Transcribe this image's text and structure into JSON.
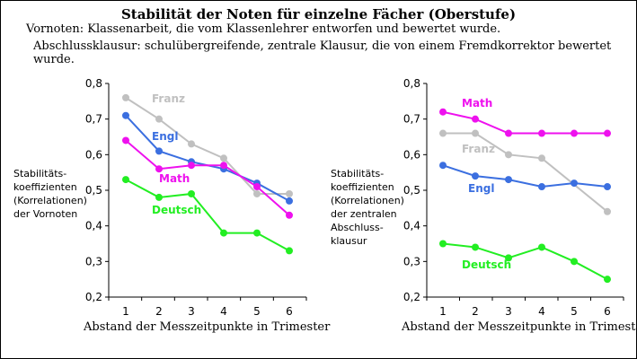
{
  "title": "Stabilität der Noten für einzelne Fächer  (Oberstufe)",
  "notes": [
    "Vornoten: Klassenarbeit, die vom Klassenlehrer entworfen und bewertet wurde.",
    "Abschlussklausur: schulübergreifende, zentrale  Klausur, die von einem Fremdkorrektor bewertet wurde."
  ],
  "colors": {
    "Franz": "#c0c0c0",
    "Engl": "#3b6fe0",
    "Math": "#ee11ee",
    "Deutsch": "#22ee22"
  },
  "chart_data": [
    {
      "type": "line",
      "ylabel_lines": [
        "Stabilitäts-",
        "koeffizienten",
        "(Korrelationen)",
        "der Vornoten"
      ],
      "xlabel": "Abstand der Messzeitpunkte in Trimester",
      "x": [
        1,
        2,
        3,
        4,
        5,
        6
      ],
      "ylim": [
        0.2,
        0.8
      ],
      "yticks": [
        "0,2",
        "0,3",
        "0,4",
        "0,5",
        "0,6",
        "0,7",
        "0,8"
      ],
      "grid": false,
      "legend": "inline labels",
      "series": [
        {
          "name": "Franz",
          "values": [
            0.76,
            0.7,
            0.63,
            0.59,
            0.49,
            0.49
          ]
        },
        {
          "name": "Engl",
          "values": [
            0.71,
            0.61,
            0.58,
            0.56,
            0.52,
            0.47
          ]
        },
        {
          "name": "Math",
          "values": [
            0.64,
            0.56,
            0.57,
            0.57,
            0.51,
            0.43
          ]
        },
        {
          "name": "Deutsch",
          "values": [
            0.53,
            0.48,
            0.49,
            0.38,
            0.38,
            0.33
          ]
        }
      ]
    },
    {
      "type": "line",
      "ylabel_lines": [
        "Stabilitäts-",
        "koeffizienten",
        "(Korrelationen)",
        "der zentralen",
        "Abschluss-",
        "klausur"
      ],
      "xlabel": "Abstand der Messzeitpunkte in Trimester",
      "x": [
        1,
        2,
        3,
        4,
        5,
        6
      ],
      "ylim": [
        0.2,
        0.8
      ],
      "yticks": [
        "0,2",
        "0,3",
        "0,4",
        "0,5",
        "0,6",
        "0,7",
        "0,8"
      ],
      "grid": false,
      "legend": "inline labels",
      "series": [
        {
          "name": "Math",
          "values": [
            0.72,
            0.7,
            0.66,
            0.66,
            0.66,
            0.66
          ]
        },
        {
          "name": "Franz",
          "values": [
            0.66,
            0.66,
            0.6,
            0.59,
            null,
            0.44
          ]
        },
        {
          "name": "Engl",
          "values": [
            0.57,
            0.54,
            0.53,
            0.51,
            0.52,
            0.51
          ]
        },
        {
          "name": "Deutsch",
          "values": [
            0.35,
            0.34,
            0.31,
            0.34,
            0.3,
            0.25
          ]
        }
      ]
    }
  ]
}
